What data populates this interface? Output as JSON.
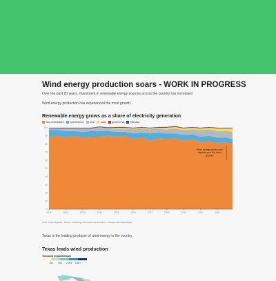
{
  "hero": {
    "color": "#43c46a"
  },
  "article": {
    "title": "Wind energy production soars - WORK IN PROGRESS",
    "intro": "Over the past 20 years, investment in renewable energy sources across the country has increased.",
    "wind_note": "Wind energy production has experienced the most growth.",
    "texas_note": "Texas is the leading producer of wind energy in the country."
  },
  "chart_data": {
    "type": "area",
    "title": "Renewable energy grows as a share of electricity generation",
    "legend": [
      {
        "name": "Non-renewables",
        "color": "#f0883a"
      },
      {
        "name": "hydroelectric",
        "color": "#4fb0e0"
      },
      {
        "name": "wind",
        "color": "#b8b8b8"
      },
      {
        "name": "solar",
        "color": "#f4e04a"
      },
      {
        "name": "geothermal",
        "color": "#d12a2a"
      },
      {
        "name": "biomass",
        "color": "#1f4e8c"
      }
    ],
    "x_ticks": [
      "2011",
      "2012",
      "2013",
      "2014",
      "2015",
      "2016",
      "2017",
      "2018",
      "2019",
      "2020",
      "2021"
    ],
    "y_ticks": [
      "0",
      "10",
      "20",
      "30",
      "40",
      "50",
      "60",
      "70",
      "80",
      "90",
      "100"
    ],
    "ylim": [
      0,
      100
    ],
    "xlim": [
      2011,
      2021.9
    ],
    "series": [
      {
        "name": "Non-renewables",
        "x": [
          2011,
          2011.5,
          2012,
          2012.5,
          2013,
          2013.5,
          2014,
          2014.5,
          2015,
          2015.5,
          2016,
          2016.5,
          2017,
          2017.5,
          2018,
          2018.5,
          2019,
          2019.5,
          2020,
          2020.5,
          2021,
          2021.5,
          2021.9
        ],
        "values": [
          88,
          90,
          88,
          90,
          88,
          89,
          89,
          90,
          89,
          90,
          86,
          88,
          84,
          87,
          86,
          87,
          84,
          86,
          82,
          84,
          81,
          82,
          80
        ]
      },
      {
        "name": "hydroelectric",
        "values": [
          9,
          7,
          8,
          6,
          7,
          7,
          7,
          6,
          6,
          5,
          7,
          6,
          9,
          7,
          7,
          6,
          7,
          6,
          7,
          6,
          7,
          6,
          6
        ]
      },
      {
        "name": "wind",
        "values": [
          2,
          2,
          3,
          3,
          4,
          3,
          4,
          3,
          4,
          4,
          5,
          5,
          5,
          5,
          5,
          6,
          6,
          6,
          8,
          8,
          8,
          8,
          9
        ]
      },
      {
        "name": "solar",
        "values": [
          0,
          0,
          0,
          0,
          0,
          0,
          0.5,
          0.5,
          1,
          1,
          1,
          1,
          1,
          1,
          2,
          2,
          2,
          2,
          2,
          2,
          3,
          3,
          4
        ]
      },
      {
        "name": "geothermal",
        "values": [
          0.4,
          0.4,
          0.4,
          0.4,
          0.4,
          0.4,
          0.4,
          0.4,
          0.4,
          0.4,
          0.4,
          0.4,
          0.4,
          0.4,
          0.4,
          0.4,
          0.4,
          0.4,
          0.4,
          0.4,
          0.4,
          0.4,
          0.4
        ]
      },
      {
        "name": "biomass",
        "values": [
          0.6,
          0.6,
          0.6,
          0.6,
          0.6,
          0.6,
          0.6,
          0.6,
          0.6,
          0.6,
          0.6,
          0.6,
          0.6,
          0.6,
          0.6,
          0.6,
          0.6,
          0.6,
          0.6,
          0.6,
          0.6,
          0.6,
          0.6
        ]
      }
    ],
    "annotation": {
      "text": [
        "Wind energy production",
        "experiences the most",
        "growth"
      ],
      "x": 2021.6,
      "y": 72
    }
  },
  "source": {
    "text": "Chart: Texas Megbam · Source: US Energy Information Administration · Created with ",
    "link": "Datawrapper"
  },
  "chart2": {
    "title": "Texas leads wind production",
    "scale_label": "Thousand megawatthours",
    "scale_ticks": [
      "186",
      "668",
      "2,064",
      "8,867"
    ],
    "scale_colors": [
      "#fdf6c8",
      "#b7e3c0",
      "#6cc6c6",
      "#2f8fb9",
      "#20306e"
    ]
  }
}
